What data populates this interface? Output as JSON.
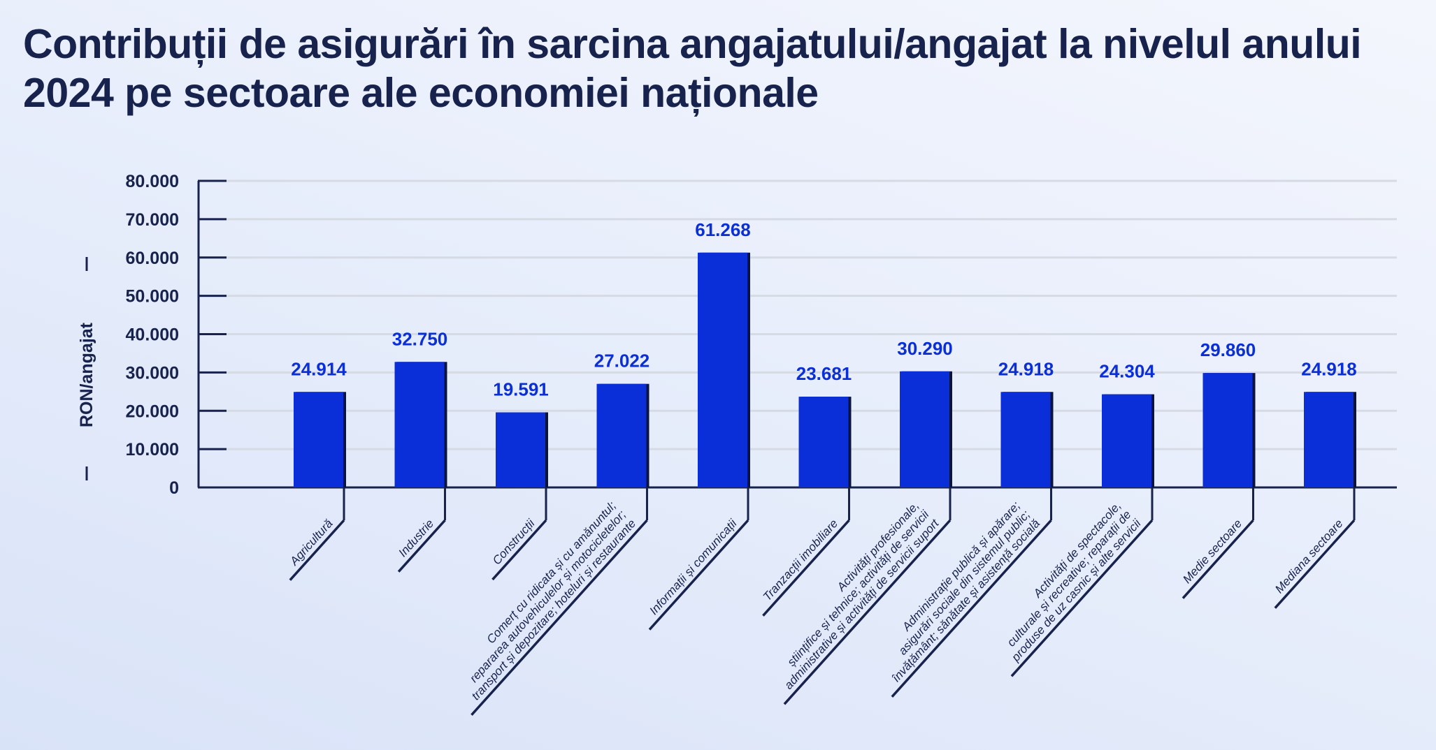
{
  "title": "Contribuții de asigurări în sarcina angajatului/angajat la nivelul anului 2024 pe sectoare ale economiei naționale",
  "colors": {
    "bar": "#0a2ed8",
    "bar_shadow": "#0b1440",
    "label": "#0a2ed8",
    "axis": "#17224d",
    "grid": "#d6dae3"
  },
  "chart_data": {
    "type": "bar",
    "title": "Contribuții de asigurări în sarcina angajatului/angajat la nivelul anului 2024 pe sectoare ale economiei naționale",
    "ylabel": "RON/angajat",
    "xlabel": "",
    "ylim": [
      0,
      80000
    ],
    "yticks": [
      0,
      10000,
      20000,
      30000,
      40000,
      50000,
      60000,
      70000,
      80000
    ],
    "ytick_labels": [
      "0",
      "10.000",
      "20.000",
      "30.000",
      "40.000",
      "50.000",
      "60.000",
      "70.000",
      "80.000"
    ],
    "grid": true,
    "categories": [
      [
        "Agricultură"
      ],
      [
        "Industrie"
      ],
      [
        "Construcții"
      ],
      [
        "Comerț cu ridicata și cu amănuntul;",
        "repararea autovehiculelor și motocicletelor;",
        "transport și depozitare; hoteluri și restaurante"
      ],
      [
        "Informații și comunicații"
      ],
      [
        "Tranzacții imobiliare"
      ],
      [
        "Activități profesionale,",
        "științifice și tehnice; activități de servicii",
        "administrative și activități de servicii suport"
      ],
      [
        "Administrație publică și apărare;",
        "asigurări sociale din sistemul public;",
        "învățământ; sănătate și asistență socială"
      ],
      [
        "Activități de spectacole,",
        "culturale și recreative; reparații de",
        "produse de uz casnic și alte servicii"
      ],
      [
        "Medie sectoare"
      ],
      [
        "Mediana sectoare"
      ]
    ],
    "values": [
      24914,
      32750,
      19591,
      27022,
      61268,
      23681,
      30290,
      24918,
      24304,
      29860,
      24918
    ],
    "value_labels": [
      "24.914",
      "32.750",
      "19.591",
      "27.022",
      "61.268",
      "23.681",
      "30.290",
      "24.918",
      "24.304",
      "29.860",
      "24.918"
    ]
  }
}
